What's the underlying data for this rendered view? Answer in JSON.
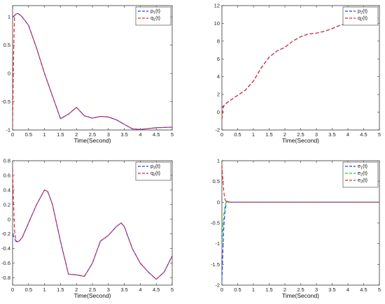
{
  "chart_data": [
    {
      "type": "line",
      "xlabel": "Time(Second)",
      "xlim": [
        0,
        5
      ],
      "ylim": [
        -1,
        1.2
      ],
      "xticks": [
        "0",
        "0.5",
        "1",
        "1.5",
        "2",
        "2.5",
        "3",
        "3.5",
        "4",
        "4.5",
        "5"
      ],
      "yticks": [
        "-1",
        "-0.5",
        "0",
        "0.5",
        "1"
      ],
      "legend_position": "top-right",
      "series": [
        {
          "name": "p1(t)",
          "label_base": "p",
          "label_sub": "1",
          "label_tail": "(t)",
          "color": "#1f3fff",
          "x": [
            0,
            0.05,
            0.1,
            0.15,
            0.2,
            0.3,
            0.5,
            0.75,
            1.0,
            1.25,
            1.5,
            1.75,
            2.0,
            2.25,
            2.5,
            2.75,
            3.0,
            3.25,
            3.5,
            3.75,
            4.0,
            4.5,
            5.0
          ],
          "y": [
            1.0,
            1.02,
            1.04,
            1.06,
            1.05,
            1.0,
            0.85,
            0.45,
            0.0,
            -0.4,
            -0.8,
            -0.72,
            -0.6,
            -0.75,
            -0.79,
            -0.76,
            -0.77,
            -0.82,
            -0.9,
            -0.98,
            -0.99,
            -0.96,
            -0.95
          ]
        },
        {
          "name": "q1(t)",
          "label_base": "q",
          "label_sub": "1",
          "label_tail": "(t)",
          "color": "#e8282b",
          "x": [
            0,
            0.03,
            0.06,
            0.1,
            0.15,
            0.2,
            0.3,
            0.5,
            0.75,
            1.0,
            1.25,
            1.5,
            1.75,
            2.0,
            2.25,
            2.5,
            2.75,
            3.0,
            3.25,
            3.5,
            3.75,
            4.0,
            4.5,
            5.0
          ],
          "y": [
            -0.95,
            0.3,
            1.0,
            1.05,
            1.06,
            1.05,
            1.0,
            0.85,
            0.45,
            0.0,
            -0.4,
            -0.8,
            -0.72,
            -0.6,
            -0.75,
            -0.79,
            -0.76,
            -0.77,
            -0.82,
            -0.9,
            -0.98,
            -0.99,
            -0.96,
            -0.95
          ]
        }
      ]
    },
    {
      "type": "line",
      "xlabel": "Time(Second)",
      "xlim": [
        0,
        5
      ],
      "ylim": [
        -2,
        12
      ],
      "xticks": [
        "0",
        "0.5",
        "1",
        "1.5",
        "2",
        "2.5",
        "3",
        "3.5",
        "4",
        "4.5",
        "5"
      ],
      "yticks": [
        "-2",
        "0",
        "2",
        "4",
        "6",
        "8",
        "10",
        "12"
      ],
      "legend_position": "top-right",
      "series": [
        {
          "name": "p2(t)",
          "label_base": "p",
          "label_sub": "2",
          "label_tail": "(t)",
          "color": "#1f3fff",
          "x": [
            0,
            0.05,
            0.1,
            0.25,
            0.5,
            0.75,
            1.0,
            1.25,
            1.5,
            1.75,
            2.0,
            2.25,
            2.5,
            2.75,
            3.0,
            3.25,
            3.5,
            3.75,
            4.0,
            4.5,
            5.0
          ],
          "y": [
            0.5,
            0.7,
            0.9,
            1.3,
            1.9,
            2.5,
            3.5,
            5.0,
            6.2,
            6.9,
            7.3,
            8.0,
            8.5,
            8.8,
            8.9,
            9.1,
            9.4,
            9.8,
            10.0,
            10.4,
            10.6
          ]
        },
        {
          "name": "q2(t)",
          "label_base": "q",
          "label_sub": "2",
          "label_tail": "(t)",
          "color": "#e8282b",
          "x": [
            0,
            0.03,
            0.06,
            0.1,
            0.25,
            0.5,
            0.75,
            1.0,
            1.25,
            1.5,
            1.75,
            2.0,
            2.25,
            2.5,
            2.75,
            3.0,
            3.25,
            3.5,
            3.75,
            4.0,
            4.5,
            5.0
          ],
          "y": [
            -0.8,
            0.2,
            0.7,
            0.9,
            1.3,
            1.9,
            2.5,
            3.5,
            5.0,
            6.2,
            6.9,
            7.3,
            8.0,
            8.5,
            8.8,
            8.9,
            9.1,
            9.4,
            9.8,
            10.0,
            10.4,
            10.6
          ]
        }
      ]
    },
    {
      "type": "line",
      "xlabel": "Time(Second)",
      "xlim": [
        0,
        5
      ],
      "ylim": [
        -0.9,
        0.8
      ],
      "xticks": [
        "0",
        "0.5",
        "1",
        "1.5",
        "2",
        "2.5",
        "3",
        "3.5",
        "4",
        "4.5",
        "5"
      ],
      "yticks": [
        "-0.8",
        "-0.6",
        "-0.4",
        "-0.2",
        "0",
        "0.2",
        "0.4",
        "0.6",
        "0.8"
      ],
      "legend_position": "top-right",
      "series": [
        {
          "name": "p3(t)",
          "label_base": "p",
          "label_sub": "3",
          "label_tail": "(t)",
          "color": "#1f3fff",
          "x": [
            0,
            0.05,
            0.1,
            0.15,
            0.2,
            0.3,
            0.5,
            0.75,
            1.0,
            1.1,
            1.25,
            1.5,
            1.75,
            2.0,
            2.25,
            2.5,
            2.75,
            3.0,
            3.25,
            3.4,
            3.5,
            3.75,
            4.0,
            4.25,
            4.5,
            4.75,
            5.0
          ],
          "y": [
            -0.2,
            -0.25,
            -0.3,
            -0.31,
            -0.3,
            -0.25,
            -0.05,
            0.2,
            0.4,
            0.38,
            0.2,
            -0.3,
            -0.75,
            -0.76,
            -0.78,
            -0.6,
            -0.3,
            -0.22,
            -0.1,
            -0.05,
            -0.1,
            -0.4,
            -0.6,
            -0.72,
            -0.82,
            -0.72,
            -0.5
          ]
        },
        {
          "name": "q3(t)",
          "label_base": "q",
          "label_sub": "3",
          "label_tail": "(t)",
          "color": "#e8282b",
          "x": [
            0,
            0.03,
            0.06,
            0.1,
            0.15,
            0.2,
            0.3,
            0.5,
            0.75,
            1.0,
            1.1,
            1.25,
            1.5,
            1.75,
            2.0,
            2.25,
            2.5,
            2.75,
            3.0,
            3.25,
            3.4,
            3.5,
            3.75,
            4.0,
            4.25,
            4.5,
            4.75,
            5.0
          ],
          "y": [
            0.7,
            0.2,
            -0.15,
            -0.28,
            -0.31,
            -0.3,
            -0.25,
            -0.05,
            0.2,
            0.4,
            0.38,
            0.2,
            -0.3,
            -0.75,
            -0.76,
            -0.78,
            -0.6,
            -0.3,
            -0.22,
            -0.1,
            -0.05,
            -0.1,
            -0.4,
            -0.6,
            -0.72,
            -0.82,
            -0.72,
            -0.5
          ]
        }
      ]
    },
    {
      "type": "line",
      "xlabel": "Time(Second)",
      "xlim": [
        0,
        5
      ],
      "ylim": [
        -2,
        1
      ],
      "xticks": [
        "0",
        "0.5",
        "1",
        "1.5",
        "2",
        "2.5",
        "3",
        "3.5",
        "4",
        "4.5",
        "5"
      ],
      "yticks": [
        "-2",
        "-1.5",
        "-1",
        "-0.5",
        "0",
        "0.5",
        "1"
      ],
      "legend_position": "top-right",
      "series": [
        {
          "name": "e1(t)",
          "label_base": "e",
          "label_sub": "1",
          "label_tail": "(t)",
          "color": "#1f3fff",
          "x": [
            0,
            0.03,
            0.06,
            0.1,
            0.15,
            0.2,
            0.3,
            0.5,
            1.0,
            5.0
          ],
          "y": [
            -1.9,
            -1.2,
            -0.6,
            -0.2,
            0.02,
            0.01,
            0,
            0,
            0,
            0
          ]
        },
        {
          "name": "e2(t)",
          "label_base": "e",
          "label_sub": "2",
          "label_tail": "(t)",
          "color": "#22cc22",
          "x": [
            0,
            0.03,
            0.06,
            0.1,
            0.15,
            0.2,
            0.3,
            0.5,
            1.0,
            5.0
          ],
          "y": [
            -1.0,
            -0.6,
            -0.3,
            -0.08,
            0.03,
            0.01,
            0,
            0,
            0,
            0
          ]
        },
        {
          "name": "e3(t)",
          "label_base": "e",
          "label_sub": "3",
          "label_tail": "(t)",
          "color": "#e8282b",
          "x": [
            0,
            0.03,
            0.06,
            0.1,
            0.15,
            0.2,
            0.3,
            0.5,
            1.0,
            5.0
          ],
          "y": [
            0.9,
            0.55,
            0.25,
            0.06,
            0.0,
            0.0,
            0,
            0,
            0,
            0
          ]
        }
      ]
    }
  ]
}
